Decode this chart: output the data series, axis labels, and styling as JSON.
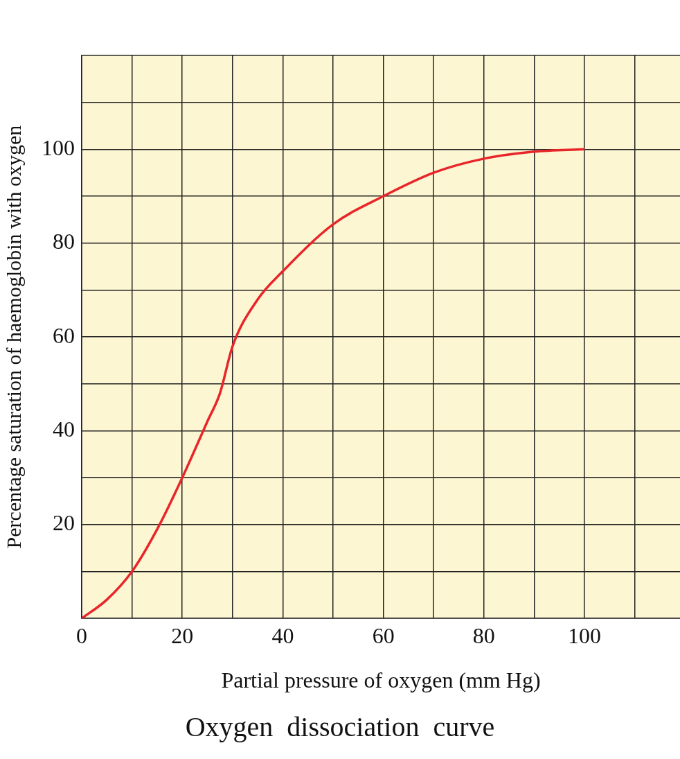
{
  "chart_data": {
    "type": "line",
    "title": "Oxygen  dissociation  curve",
    "xlabel": "Partial pressure of oxygen (mm Hg)",
    "ylabel": "Percentage saturation of haemoglobin with oxygen",
    "x": [
      0,
      5,
      10,
      15,
      20,
      25,
      27.5,
      30,
      35,
      40,
      50,
      60,
      70,
      80,
      90,
      100
    ],
    "series": [
      {
        "color": "#e8262a",
        "values": [
          0,
          4,
          10,
          19,
          30,
          42,
          48,
          58,
          68,
          74,
          84,
          90,
          95,
          98,
          99.5,
          100
        ]
      }
    ],
    "xlim": [
      0,
      119
    ],
    "ylim": [
      0,
      120
    ],
    "xticks": [
      0,
      {
        "value": 10,
        "label": null
      },
      20,
      {
        "value": 30,
        "label": null
      },
      40,
      {
        "value": 50,
        "label": null
      },
      60,
      {
        "value": 70,
        "label": null
      },
      80,
      {
        "value": 90,
        "label": null
      },
      100,
      {
        "value": 110,
        "label": null
      }
    ],
    "yticks": [
      {
        "value": 0,
        "label": null
      },
      {
        "value": 10,
        "label": null
      },
      20,
      {
        "value": 30,
        "label": null
      },
      40,
      {
        "value": 50,
        "label": null
      },
      60,
      {
        "value": 70,
        "label": null
      },
      80,
      {
        "value": 90,
        "label": null
      },
      100,
      {
        "value": 110,
        "label": null
      },
      {
        "value": 120,
        "label": null
      }
    ],
    "grid": true,
    "legend": false,
    "marker": "none",
    "line_style": "solid"
  }
}
